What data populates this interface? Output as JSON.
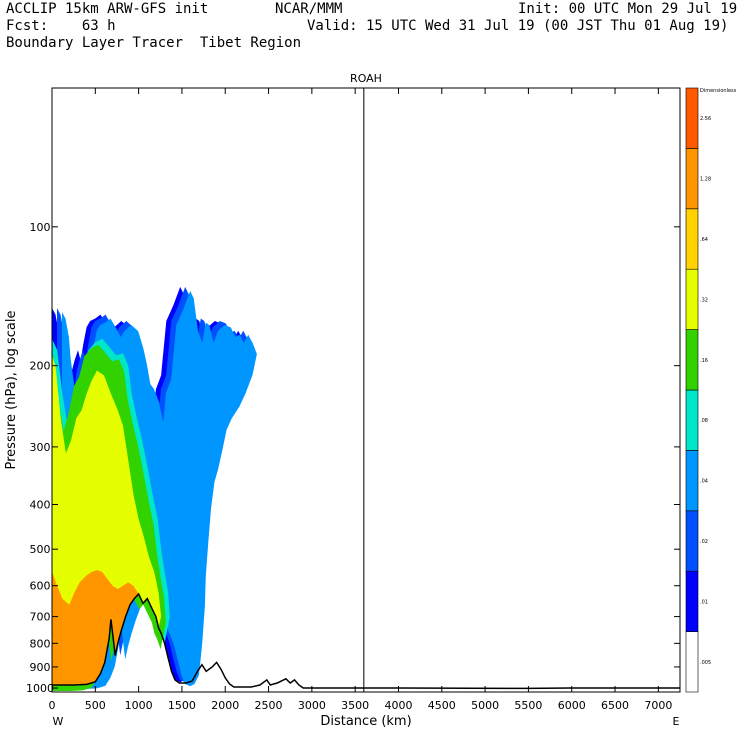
{
  "header": {
    "left_line1": "ACCLIP 15km ARW-GFS init",
    "center_line1": "NCAR/MMM",
    "right_line1": "Init: 00 UTC Mon 29 Jul 19",
    "left_line2": "Fcst:    63 h",
    "right_line2": "Valid: 15 UTC Wed 31 Jul 19 (00 JST Thu 01 Aug 19)",
    "left_line3": "Boundary Layer Tracer  Tibet Region"
  },
  "chart_data": {
    "type": "cross-section",
    "title": "ROAH",
    "xlabel": "Distance (km)",
    "ylabel": "Pressure (hPa), log scale",
    "x_left_label": "W",
    "x_right_label": "E",
    "xlim": [
      0,
      7250
    ],
    "ylim": [
      1020,
      50
    ],
    "y_scale": "log",
    "x_ticks": [
      0,
      500,
      1000,
      1500,
      2000,
      2500,
      3000,
      3500,
      4000,
      4500,
      5000,
      5500,
      6000,
      6500,
      7000
    ],
    "y_ticks": [
      100,
      200,
      300,
      400,
      500,
      600,
      700,
      800,
      900,
      1000
    ],
    "marker_x": 3600,
    "colorbar": {
      "unit": "Dimensionless",
      "levels": [
        ".005",
        ".01",
        ".02",
        ".04",
        ".08",
        ".16",
        ".32",
        ".64",
        "1.28",
        "2.56"
      ],
      "colors": [
        "#ffffff",
        "#0000ff",
        "#0050ff",
        "#0096ff",
        "#00e6c8",
        "#32d200",
        "#e6ff00",
        "#ffd200",
        "#ff9600",
        "#ff5a00"
      ]
    },
    "terrain": [
      [
        0,
        985
      ],
      [
        250,
        985
      ],
      [
        400,
        982
      ],
      [
        500,
        970
      ],
      [
        560,
        930
      ],
      [
        610,
        880
      ],
      [
        660,
        780
      ],
      [
        680,
        710
      ],
      [
        700,
        760
      ],
      [
        730,
        850
      ],
      [
        760,
        800
      ],
      [
        800,
        750
      ],
      [
        850,
        700
      ],
      [
        900,
        660
      ],
      [
        950,
        640
      ],
      [
        1000,
        625
      ],
      [
        1050,
        655
      ],
      [
        1100,
        640
      ],
      [
        1150,
        670
      ],
      [
        1200,
        700
      ],
      [
        1230,
        740
      ],
      [
        1260,
        760
      ],
      [
        1300,
        800
      ],
      [
        1340,
        860
      ],
      [
        1380,
        920
      ],
      [
        1420,
        960
      ],
      [
        1470,
        975
      ],
      [
        1550,
        975
      ],
      [
        1620,
        965
      ],
      [
        1680,
        920
      ],
      [
        1730,
        890
      ],
      [
        1780,
        920
      ],
      [
        1850,
        900
      ],
      [
        1900,
        880
      ],
      [
        1950,
        910
      ],
      [
        2000,
        950
      ],
      [
        2050,
        980
      ],
      [
        2100,
        995
      ],
      [
        2300,
        995
      ],
      [
        2400,
        985
      ],
      [
        2480,
        960
      ],
      [
        2520,
        985
      ],
      [
        2600,
        975
      ],
      [
        2700,
        955
      ],
      [
        2750,
        975
      ],
      [
        2800,
        960
      ],
      [
        2850,
        985
      ],
      [
        2900,
        1000
      ],
      [
        4000,
        1000
      ],
      [
        5500,
        1002
      ],
      [
        6000,
        1000
      ],
      [
        7250,
        1000
      ]
    ],
    "tracer_outer": [
      [
        0,
        150
      ],
      [
        40,
        155
      ],
      [
        80,
        170
      ],
      [
        100,
        190
      ],
      [
        140,
        215
      ],
      [
        170,
        240
      ],
      [
        200,
        225
      ],
      [
        230,
        205
      ],
      [
        260,
        195
      ],
      [
        300,
        185
      ],
      [
        330,
        195
      ],
      [
        360,
        180
      ],
      [
        400,
        165
      ],
      [
        440,
        160
      ],
      [
        500,
        158
      ],
      [
        560,
        155
      ],
      [
        620,
        162
      ],
      [
        680,
        170
      ],
      [
        720,
        165
      ],
      [
        800,
        160
      ],
      [
        880,
        165
      ],
      [
        940,
        180
      ],
      [
        980,
        195
      ],
      [
        1020,
        215
      ],
      [
        1060,
        220
      ],
      [
        1120,
        235
      ],
      [
        1170,
        260
      ],
      [
        1200,
        225
      ],
      [
        1260,
        210
      ],
      [
        1320,
        160
      ],
      [
        1400,
        148
      ],
      [
        1480,
        135
      ],
      [
        1520,
        140
      ],
      [
        1570,
        165
      ],
      [
        1620,
        175
      ],
      [
        1660,
        158
      ],
      [
        1700,
        160
      ],
      [
        1750,
        175
      ],
      [
        1800,
        165
      ],
      [
        1880,
        160
      ],
      [
        1950,
        162
      ],
      [
        2000,
        170
      ],
      [
        2050,
        168
      ],
      [
        2100,
        175
      ],
      [
        2150,
        168
      ],
      [
        2200,
        175
      ],
      [
        2250,
        185
      ],
      [
        2200,
        205
      ],
      [
        2120,
        225
      ],
      [
        2050,
        240
      ],
      [
        1960,
        255
      ],
      [
        1900,
        270
      ],
      [
        1850,
        300
      ],
      [
        1800,
        330
      ],
      [
        1760,
        350
      ],
      [
        1720,
        400
      ],
      [
        1690,
        470
      ],
      [
        1660,
        560
      ],
      [
        1650,
        650
      ],
      [
        1620,
        780
      ],
      [
        1600,
        850
      ],
      [
        1580,
        920
      ],
      [
        1530,
        960
      ],
      [
        1480,
        972
      ],
      [
        1420,
        960
      ],
      [
        1380,
        920
      ],
      [
        1340,
        860
      ],
      [
        1300,
        800
      ],
      [
        1260,
        760
      ],
      [
        1230,
        740
      ],
      [
        1200,
        700
      ],
      [
        1150,
        670
      ],
      [
        1100,
        640
      ],
      [
        1050,
        655
      ],
      [
        1000,
        625
      ],
      [
        950,
        640
      ],
      [
        900,
        660
      ],
      [
        850,
        700
      ],
      [
        800,
        750
      ],
      [
        760,
        800
      ],
      [
        730,
        850
      ],
      [
        700,
        760
      ],
      [
        680,
        710
      ],
      [
        660,
        780
      ],
      [
        610,
        880
      ],
      [
        560,
        930
      ],
      [
        500,
        970
      ],
      [
        400,
        982
      ],
      [
        250,
        985
      ],
      [
        0,
        985
      ]
    ],
    "tracer_green": [
      [
        0,
        175
      ],
      [
        60,
        185
      ],
      [
        120,
        230
      ],
      [
        180,
        270
      ],
      [
        240,
        245
      ],
      [
        300,
        215
      ],
      [
        360,
        205
      ],
      [
        420,
        185
      ],
      [
        500,
        178
      ],
      [
        580,
        175
      ],
      [
        660,
        182
      ],
      [
        740,
        190
      ],
      [
        820,
        188
      ],
      [
        880,
        200
      ],
      [
        920,
        230
      ],
      [
        980,
        260
      ],
      [
        1040,
        290
      ],
      [
        1100,
        330
      ],
      [
        1160,
        380
      ],
      [
        1220,
        430
      ],
      [
        1260,
        500
      ],
      [
        1300,
        560
      ],
      [
        1340,
        620
      ],
      [
        1360,
        700
      ],
      [
        1300,
        800
      ],
      [
        1260,
        760
      ],
      [
        1230,
        740
      ],
      [
        1200,
        700
      ],
      [
        1150,
        670
      ],
      [
        1100,
        640
      ],
      [
        1050,
        655
      ],
      [
        1000,
        625
      ],
      [
        950,
        640
      ],
      [
        900,
        660
      ],
      [
        850,
        700
      ],
      [
        800,
        750
      ],
      [
        760,
        800
      ],
      [
        730,
        850
      ],
      [
        700,
        760
      ],
      [
        680,
        710
      ],
      [
        660,
        780
      ],
      [
        610,
        880
      ],
      [
        560,
        930
      ],
      [
        500,
        970
      ],
      [
        400,
        982
      ],
      [
        250,
        985
      ],
      [
        0,
        985
      ]
    ],
    "tracer_yellow": [
      [
        0,
        190
      ],
      [
        40,
        200
      ],
      [
        100,
        260
      ],
      [
        160,
        310
      ],
      [
        220,
        290
      ],
      [
        280,
        260
      ],
      [
        340,
        250
      ],
      [
        400,
        230
      ],
      [
        460,
        215
      ],
      [
        520,
        205
      ],
      [
        600,
        210
      ],
      [
        680,
        230
      ],
      [
        760,
        250
      ],
      [
        820,
        270
      ],
      [
        880,
        320
      ],
      [
        940,
        380
      ],
      [
        1000,
        430
      ],
      [
        1060,
        470
      ],
      [
        1120,
        520
      ],
      [
        1180,
        560
      ],
      [
        1230,
        620
      ],
      [
        1260,
        700
      ],
      [
        1230,
        740
      ],
      [
        1200,
        700
      ],
      [
        1150,
        670
      ],
      [
        1100,
        640
      ],
      [
        1050,
        655
      ],
      [
        1000,
        625
      ],
      [
        950,
        640
      ],
      [
        900,
        660
      ],
      [
        850,
        700
      ],
      [
        800,
        750
      ],
      [
        760,
        800
      ],
      [
        730,
        850
      ],
      [
        700,
        760
      ],
      [
        680,
        710
      ],
      [
        660,
        780
      ],
      [
        610,
        880
      ],
      [
        560,
        930
      ],
      [
        500,
        970
      ],
      [
        400,
        982
      ],
      [
        250,
        985
      ],
      [
        0,
        985
      ]
    ],
    "tracer_orange": [
      [
        0,
        560
      ],
      [
        60,
        600
      ],
      [
        120,
        640
      ],
      [
        200,
        660
      ],
      [
        260,
        620
      ],
      [
        320,
        590
      ],
      [
        400,
        570
      ],
      [
        460,
        560
      ],
      [
        520,
        555
      ],
      [
        580,
        560
      ],
      [
        640,
        580
      ],
      [
        700,
        600
      ],
      [
        760,
        610
      ],
      [
        820,
        600
      ],
      [
        880,
        590
      ],
      [
        940,
        600
      ],
      [
        1000,
        625
      ],
      [
        950,
        640
      ],
      [
        900,
        660
      ],
      [
        850,
        700
      ],
      [
        800,
        750
      ],
      [
        760,
        800
      ],
      [
        730,
        850
      ],
      [
        700,
        760
      ],
      [
        680,
        710
      ],
      [
        660,
        780
      ],
      [
        610,
        880
      ],
      [
        560,
        930
      ],
      [
        500,
        970
      ],
      [
        400,
        982
      ],
      [
        250,
        985
      ],
      [
        0,
        985
      ]
    ]
  }
}
